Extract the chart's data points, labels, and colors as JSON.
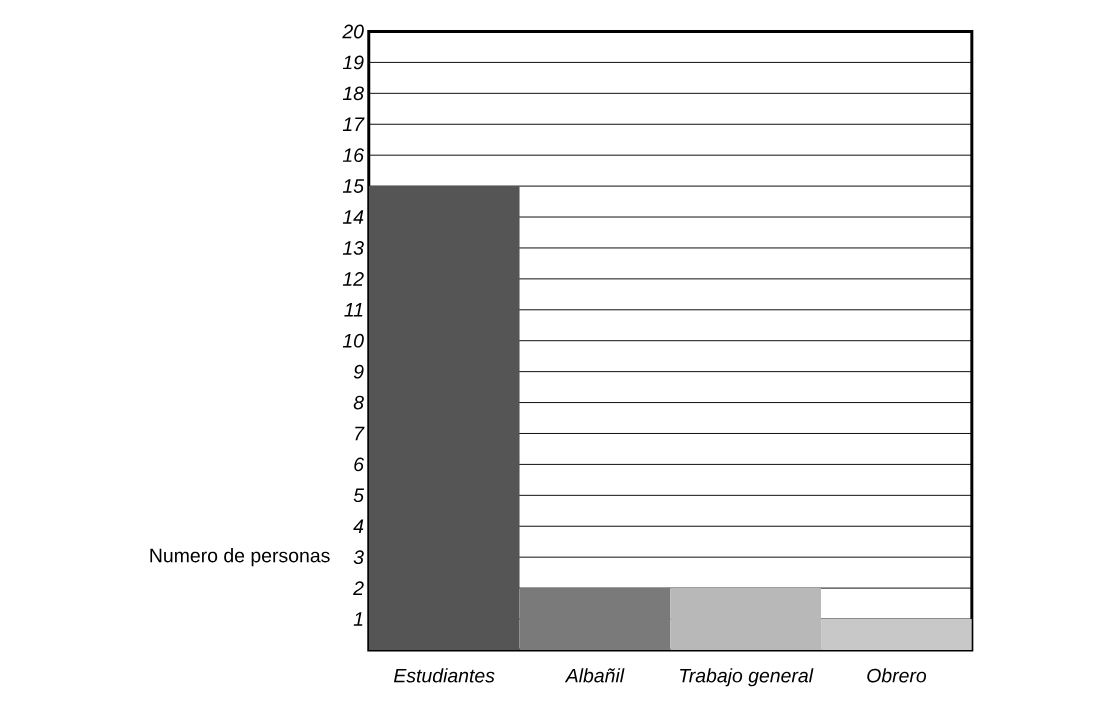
{
  "chart_data": {
    "type": "bar",
    "ylabel": "Numero de personas",
    "categories": [
      "Estudiantes",
      "Albañil",
      "Trabajo general",
      "Obrero"
    ],
    "values": [
      15,
      2,
      2,
      1
    ],
    "colors": [
      "#555555",
      "#7a7a7a",
      "#b8b8b8",
      "#c8c8c8"
    ],
    "ylim": [
      0,
      20
    ],
    "yticks": [
      1,
      2,
      3,
      4,
      5,
      6,
      7,
      8,
      9,
      10,
      11,
      12,
      13,
      14,
      15,
      16,
      17,
      18,
      19,
      20
    ],
    "grid": "y"
  }
}
